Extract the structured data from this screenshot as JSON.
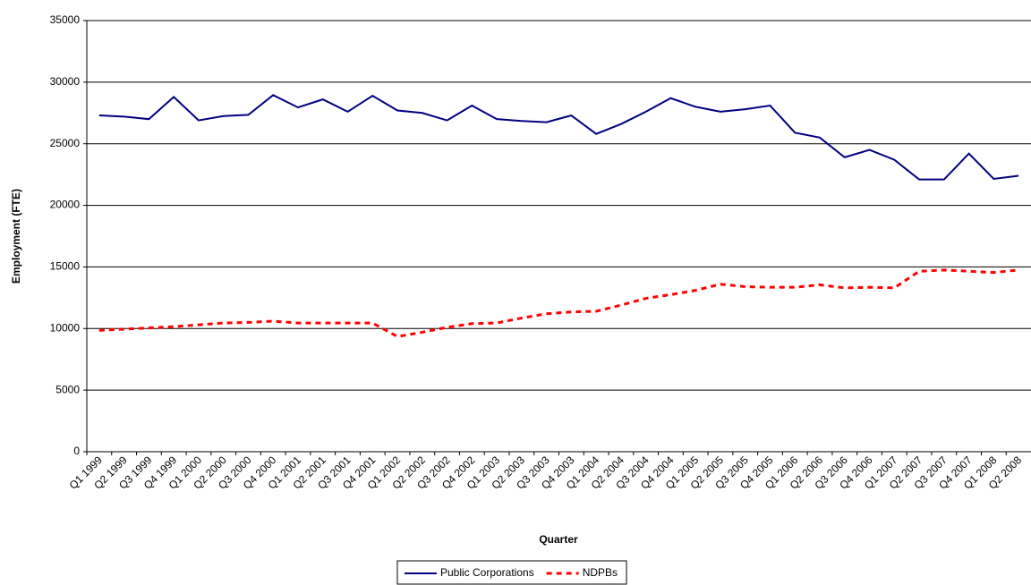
{
  "chart_data": {
    "type": "line",
    "x_label": "Quarter",
    "y_label": "Employment (FTE)",
    "categories": [
      "Q1 1999",
      "Q2 1999",
      "Q3 1999",
      "Q4 1999",
      "Q1 2000",
      "Q2 2000",
      "Q3 2000",
      "Q4 2000",
      "Q1 2001",
      "Q2 2001",
      "Q3 2001",
      "Q4 2001",
      "Q1 2002",
      "Q2 2002",
      "Q3 2002",
      "Q4 2002",
      "Q1 2003",
      "Q2 2003",
      "Q3 2003",
      "Q4 2003",
      "Q1 2004",
      "Q2 2004",
      "Q3 2004",
      "Q4 2004",
      "Q1 2005",
      "Q2 2005",
      "Q3 2005",
      "Q4 2005",
      "Q1 2006",
      "Q2 2006",
      "Q3 2006",
      "Q4 2006",
      "Q1 2007",
      "Q2 2007",
      "Q3 2007",
      "Q4 2007",
      "Q1 2008",
      "Q2 2008"
    ],
    "series": [
      {
        "name": "Public Corporations",
        "color": "#000080",
        "linestyle": "solid",
        "values": [
          27300,
          27200,
          27000,
          28800,
          26900,
          27250,
          27350,
          28950,
          27950,
          28600,
          27600,
          28900,
          27700,
          27500,
          26900,
          28100,
          27000,
          26850,
          26750,
          27300,
          25800,
          26600,
          27600,
          28700,
          28000,
          27600,
          27800,
          28100,
          25900,
          25500,
          23900,
          24500,
          23700,
          22100,
          22100,
          24200,
          22150,
          22400
        ]
      },
      {
        "name": "NDPBs",
        "color": "#ff0000",
        "linestyle": "dashed",
        "values": [
          9850,
          9950,
          10050,
          10150,
          10300,
          10450,
          10500,
          10600,
          10450,
          10450,
          10450,
          10450,
          9350,
          9700,
          10100,
          10400,
          10450,
          10850,
          11200,
          11350,
          11400,
          11900,
          12450,
          12750,
          13100,
          13600,
          13400,
          13350,
          13350,
          13550,
          13300,
          13350,
          13300,
          14650,
          14750,
          14650,
          14550,
          14750
        ]
      }
    ],
    "ylim": [
      0,
      35000
    ],
    "yticks": [
      0,
      5000,
      10000,
      15000,
      20000,
      25000,
      30000,
      35000
    ],
    "grid": true,
    "legend": "bottom"
  }
}
